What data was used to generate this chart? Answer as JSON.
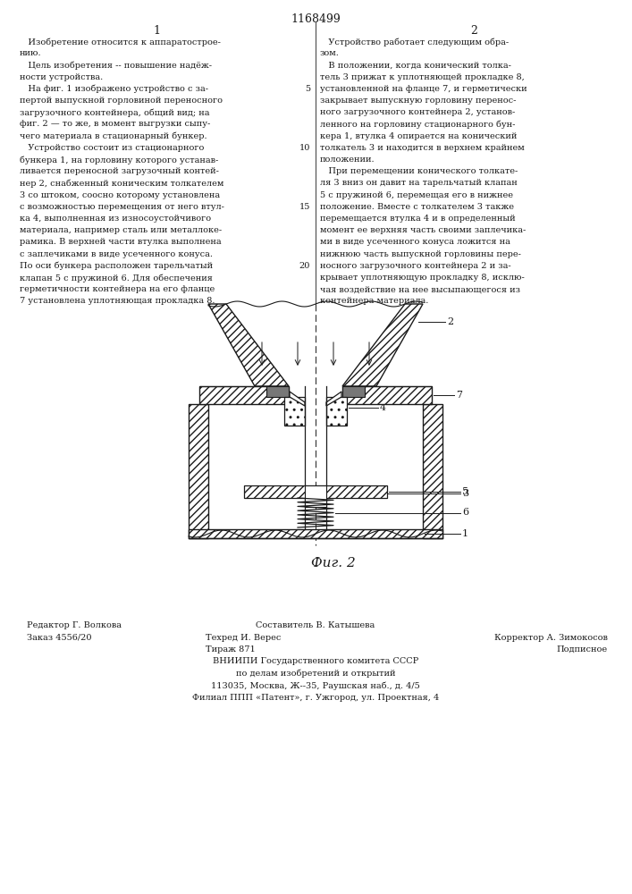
{
  "patent_number": "1168499",
  "col1_header": "1",
  "col2_header": "2",
  "bg_color": "#ffffff",
  "text_color": "#1a1a1a",
  "col1_text": [
    "   Изобретение относится к аппаратострое-",
    "нию.",
    "   Цель изобретения -- повышение надёж-",
    "ности устройства.",
    "   На фиг. 1 изображено устройство с за-",
    "пертой выпускной горловиной переносного",
    "загрузочного контейнера, общий вид; на",
    "фиг. 2 — то же, в момент выгрузки сыпу-",
    "чего материала в стационарный бункер.",
    "   Устройство состоит из стационарного",
    "бункера 1, на горловину которого устанав-",
    "ливается переносной загрузочный контей-",
    "нер 2, снабженный коническим толкателем",
    "3 со штоком, соосно которому установлена",
    "с возможностью перемещения от него втул-",
    "ка 4, выполненная из износоустойчивого",
    "материала, например сталь или металлоке-",
    "рамика. В верхней части втулка выполнена",
    "с заплечиками в виде усеченного конуса.",
    "По оси бункера расположен тарельчатый",
    "клапан 5 с пружиной 6. Для обеспечения",
    "герметичности контейнера на его фланце",
    "7 установлена уплотняющая прокладка 8."
  ],
  "col2_text": [
    "   Устройство работает следующим обра-",
    "зом.",
    "   В положении, когда конический толка-",
    "тель 3 прижат к уплотняющей прокладке 8,",
    "установленной на фланце 7, и герметически",
    "закрывает выпускную горловину переноc-",
    "ного загрузочного контейнера 2, установ-",
    "ленного на горловину стационарного бун-",
    "кера 1, втулка 4 опирается на конический",
    "толкатель 3 и находится в верхнем крайнем",
    "положении.",
    "   При перемещении конического толкате-",
    "ля 3 вниз он давит на тарельчатый клапан",
    "5 с пружиной 6, перемещая его в нижнее",
    "положение. Вместе с толкателем 3 также",
    "перемещается втулка 4 и в определенный",
    "момент ее верхняя часть своими заплечика-",
    "ми в виде усеченного конуса ложится на",
    "нижнюю часть выпускной горловины пере-",
    "носного загрузочного контейнера 2 и за-",
    "крывает уплотняющую прокладку 8, исклю-",
    "чая воздействие на нее высыпающегося из",
    "контейнера материала."
  ],
  "line_numbers": [
    [
      "5",
      4
    ],
    [
      "10",
      9
    ],
    [
      "15",
      14
    ],
    [
      "20",
      19
    ]
  ],
  "caption": "Фиг. 2",
  "footer_left_line1": "Редактор Г. Волкова",
  "footer_left_line2": "Заказ 4556/20",
  "footer_center_line1": "Составитель В. Катышева",
  "footer_center_line2": "Техред И. Верес",
  "footer_center_line3": "Тираж 871",
  "footer_center_line4": "ВНИИПИ Государственного комитета СССР",
  "footer_center_line5": "по делам изобретений и открытий",
  "footer_center_line6": "113035, Москва, Ж--35, Раушская наб., д. 4/5",
  "footer_center_line7": "Филиал ППП «Патент», г. Ужгород, ул. Проектная, 4",
  "footer_right_line2": "Корректор А. Зимокосов",
  "footer_right_line3": "Подписное",
  "hatch_color": "#333333",
  "dark_fill": "#777777"
}
